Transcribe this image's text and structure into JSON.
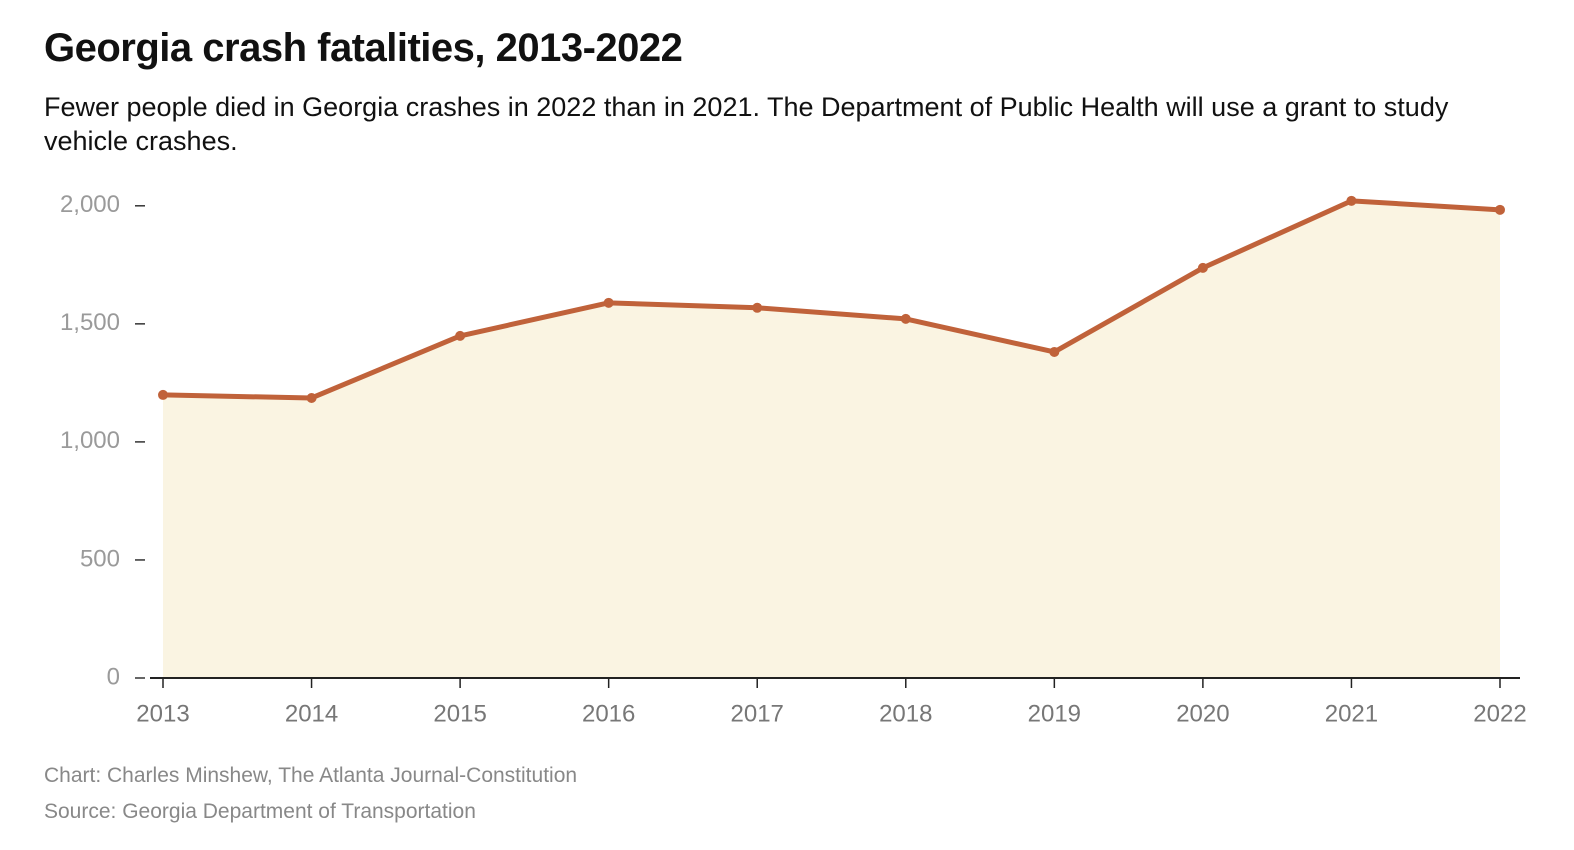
{
  "chart_data": {
    "type": "area-line",
    "title": "Georgia crash fatalities, 2013-2022",
    "subtitle": "Fewer people died in Georgia crashes in 2022 than in 2021. The Department of Public Health will use a grant to study vehicle crashes.",
    "x": [
      2013,
      2014,
      2015,
      2016,
      2017,
      2018,
      2019,
      2020,
      2021,
      2022
    ],
    "values": [
      1199,
      1186,
      1449,
      1589,
      1568,
      1521,
      1381,
      1737,
      2021,
      1983
    ],
    "color": "#c0623a",
    "area_color": "#faf4e2",
    "xlim": [
      2013,
      2022
    ],
    "xticks": [
      2013,
      2014,
      2015,
      2016,
      2017,
      2018,
      2019,
      2020,
      2021,
      2022
    ],
    "ylim": [
      0,
      2050
    ],
    "yticks": [
      0,
      500,
      {
        "value": 1000,
        "label": "1,000"
      },
      {
        "value": 1500,
        "label": "1,500"
      },
      {
        "value": 2000,
        "label": "2,000"
      }
    ],
    "grid": false,
    "notes": [
      "Chart: Charles Minshew, The Atlanta Journal-Constitution",
      "Source: Georgia Department of Transportation"
    ]
  }
}
